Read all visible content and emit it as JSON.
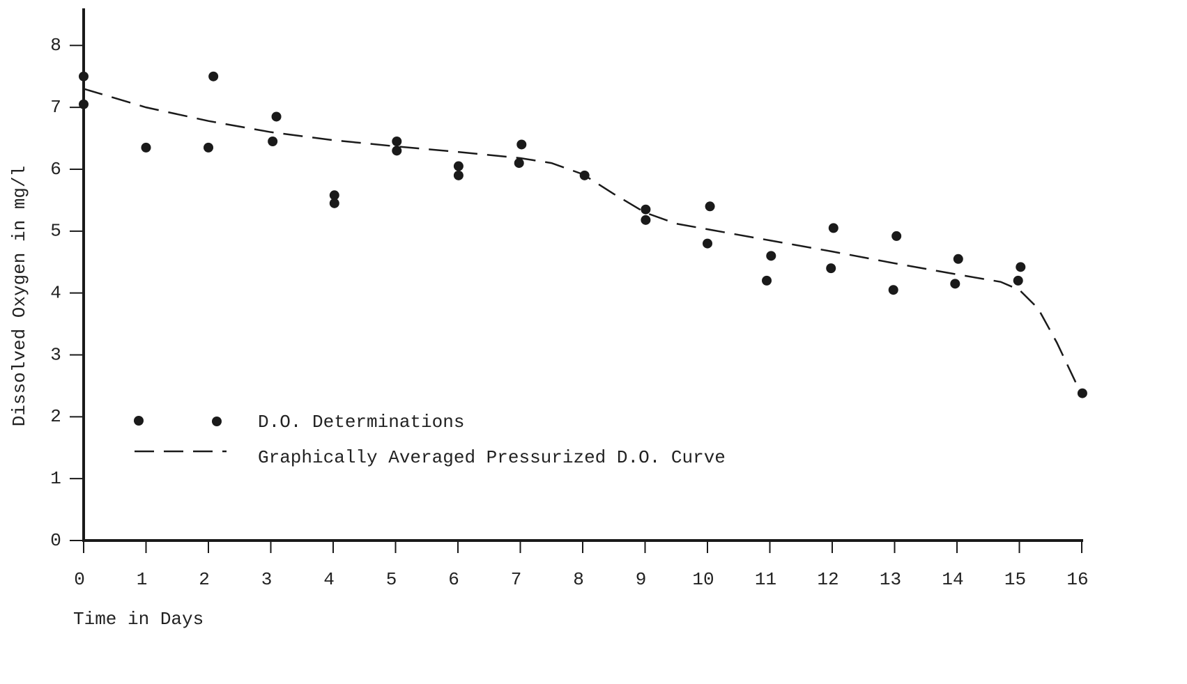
{
  "chart_data": {
    "type": "scatter",
    "xlabel": "Time in Days",
    "ylabel": "Dissolved Oxygen in mg/l",
    "xlim": [
      0,
      16
    ],
    "ylim": [
      0,
      8.6
    ],
    "xticks": [
      0,
      1,
      2,
      3,
      4,
      5,
      6,
      7,
      8,
      9,
      10,
      11,
      12,
      13,
      14,
      15,
      16
    ],
    "yticks": [
      0,
      1,
      2,
      3,
      4,
      5,
      6,
      7,
      8
    ],
    "series": [
      {
        "name": "D.O. Determinations",
        "type": "scatter",
        "color": "#1a1a1a",
        "x": [
          0,
          0,
          1,
          2,
          2.08,
          3.03,
          3.09,
          4.02,
          4.02,
          5.02,
          5.02,
          6.01,
          6.01,
          7.02,
          6.98,
          8.03,
          9.01,
          9.01,
          10.04,
          10.0,
          11.02,
          10.95,
          12.02,
          11.98,
          13.03,
          12.98,
          14.02,
          13.97,
          15.02,
          14.98,
          16.01
        ],
        "values": [
          7.5,
          7.05,
          6.35,
          6.35,
          7.5,
          6.45,
          6.85,
          5.58,
          5.45,
          6.45,
          6.3,
          6.05,
          5.9,
          6.4,
          6.1,
          5.9,
          5.35,
          5.18,
          5.4,
          4.8,
          4.6,
          4.2,
          5.05,
          4.4,
          4.92,
          4.05,
          4.55,
          4.15,
          4.42,
          4.2,
          2.38
        ]
      },
      {
        "name": "Graphically Averaged Pressurized D.O. Curve",
        "type": "line",
        "style": "dashed",
        "color": "#1a1a1a",
        "x": [
          0,
          1,
          2,
          3,
          4,
          5,
          6,
          7,
          7.5,
          8,
          8.5,
          9,
          9.5,
          10,
          11,
          12,
          13,
          14,
          14.7,
          15,
          15.3,
          15.6,
          16
        ],
        "values": [
          7.3,
          7.0,
          6.78,
          6.6,
          6.47,
          6.37,
          6.28,
          6.18,
          6.1,
          5.92,
          5.6,
          5.3,
          5.12,
          5.03,
          4.85,
          4.67,
          4.48,
          4.3,
          4.18,
          4.05,
          3.75,
          3.2,
          2.35
        ]
      }
    ]
  }
}
